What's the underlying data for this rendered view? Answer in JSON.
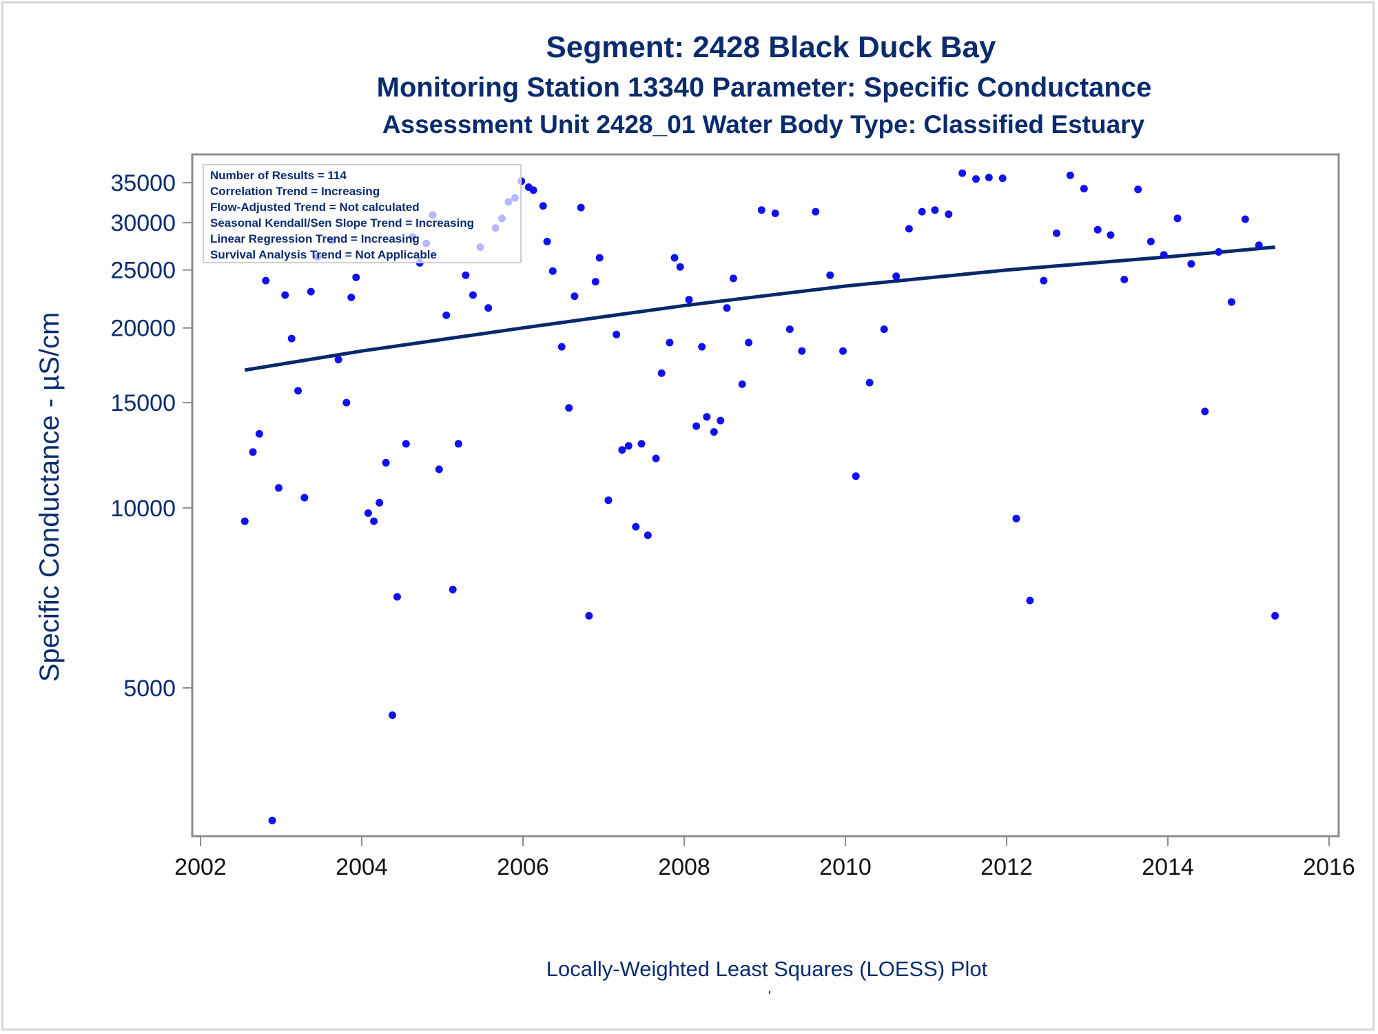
{
  "chart_data": {
    "type": "scatter",
    "title": "Segment: 2428  Black Duck Bay",
    "subtitle": "Monitoring Station 13340 Parameter: Specific Conductance",
    "subtitle2": "Assessment Unit 2428_01   Water Body Type: Classified Estuary",
    "xlabel": "",
    "ylabel": "Specific Conductance -  µS/cm",
    "footnote": "Locally-Weighted Least Squares (LOESS) Plot",
    "footnote_mark": "'",
    "y_scale": "log",
    "xlim": [
      2002,
      2016
    ],
    "ylim": [
      2900,
      38000
    ],
    "x_ticks": [
      2002,
      2004,
      2006,
      2008,
      2010,
      2012,
      2014,
      2016
    ],
    "y_ticks": [
      5000,
      10000,
      15000,
      20000,
      25000,
      30000,
      35000
    ],
    "colors": {
      "text": "#0a2c6e",
      "points": "#1010f0",
      "trend": "#07286a",
      "axis": "#8c8c8c",
      "tick_labels_x": "#111111"
    },
    "stats_box": [
      "Number of Results = 114",
      "Correlation Trend = Increasing",
      "Flow-Adjusted Trend = Not calculated",
      "Seasonal Kendall/Sen Slope Trend = Increasing",
      "Linear Regression Trend = Increasing",
      "Survival Analysis Trend = Not Applicable"
    ],
    "stats_box_placement": "top-left",
    "trend_line": {
      "name": "",
      "x": [
        2002.55,
        2004.0,
        2006.0,
        2008.0,
        2010.0,
        2012.0,
        2014.0,
        2015.33
      ],
      "y": [
        17000,
        18300,
        20000,
        21800,
        23500,
        25000,
        26300,
        27300
      ]
    },
    "series": [
      {
        "name": "",
        "x": [
          2002.55,
          2002.65,
          2002.73,
          2002.81,
          2002.89,
          2002.97,
          2003.05,
          2003.13,
          2003.21,
          2003.29,
          2003.37,
          2003.45,
          2003.63,
          2003.71,
          2003.81,
          2003.87,
          2003.93,
          2004.08,
          2004.15,
          2004.22,
          2004.3,
          2004.38,
          2004.44,
          2004.55,
          2004.63,
          2004.72,
          2004.8,
          2004.88,
          2004.96,
          2005.05,
          2005.13,
          2005.2,
          2005.29,
          2005.38,
          2005.47,
          2005.57,
          2005.66,
          2005.74,
          2005.82,
          2005.9,
          2005.98,
          2006.07,
          2006.13,
          2006.25,
          2006.3,
          2006.37,
          2006.48,
          2006.57,
          2006.64,
          2006.72,
          2006.82,
          2006.9,
          2006.95,
          2007.06,
          2007.16,
          2007.23,
          2007.31,
          2007.4,
          2007.47,
          2007.55,
          2007.65,
          2007.72,
          2007.82,
          2007.88,
          2007.95,
          2008.06,
          2008.15,
          2008.22,
          2008.28,
          2008.37,
          2008.45,
          2008.53,
          2008.61,
          2008.72,
          2008.8,
          2008.96,
          2009.13,
          2009.31,
          2009.46,
          2009.63,
          2009.81,
          2009.97,
          2010.13,
          2010.3,
          2010.48,
          2010.63,
          2010.79,
          2010.95,
          2011.11,
          2011.28,
          2011.45,
          2011.62,
          2011.78,
          2011.95,
          2012.12,
          2012.29,
          2012.46,
          2012.62,
          2012.79,
          2012.96,
          2013.13,
          2013.29,
          2013.46,
          2013.63,
          2013.79,
          2013.95,
          2014.12,
          2014.29,
          2014.46,
          2014.63,
          2014.79,
          2014.96,
          2015.13,
          2015.33
        ],
        "y": [
          9500,
          12400,
          13300,
          24000,
          3000,
          10800,
          22700,
          19200,
          15700,
          10400,
          23000,
          26300,
          28000,
          17700,
          15000,
          22500,
          24300,
          9800,
          9500,
          10200,
          11900,
          4500,
          7100,
          12800,
          28400,
          25700,
          27700,
          30900,
          11600,
          21000,
          7300,
          12800,
          24500,
          22700,
          27300,
          21600,
          29400,
          30500,
          32500,
          33000,
          35200,
          34400,
          34000,
          32000,
          27900,
          24900,
          18600,
          14700,
          22600,
          31800,
          6600,
          23900,
          26200,
          10300,
          19500,
          12500,
          12700,
          9300,
          12800,
          9000,
          12100,
          16800,
          18900,
          26200,
          25300,
          22300,
          13700,
          18600,
          14200,
          13400,
          14000,
          21600,
          24200,
          16100,
          18900,
          31500,
          31100,
          19900,
          18300,
          31300,
          24500,
          18300,
          11300,
          16200,
          19900,
          24400,
          29300,
          31300,
          31500,
          31000,
          36300,
          35500,
          35700,
          35600,
          9600,
          7000,
          24000,
          28800,
          36000,
          34200,
          29200,
          28600,
          24100,
          34100,
          27900,
          26500,
          30500,
          25600,
          14500,
          26800,
          22100,
          30400,
          27500,
          6600
        ]
      }
    ]
  }
}
